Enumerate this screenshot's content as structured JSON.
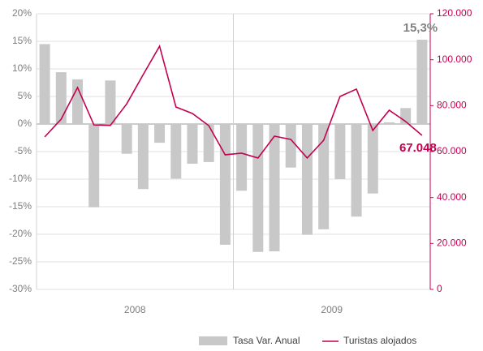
{
  "chart_data": {
    "type": "bar-line",
    "categories": [
      null,
      null,
      null,
      null,
      null,
      null,
      null,
      null,
      null,
      null,
      null,
      null,
      null,
      null,
      null,
      null,
      null,
      null,
      null,
      null,
      null,
      null,
      null,
      null
    ],
    "x_groups": [
      "2008",
      "2009"
    ],
    "series": [
      {
        "name": "Tasa Var. Anual",
        "type": "bar",
        "axis": "y",
        "color": "#c8c8c8",
        "values": [
          14.5,
          9.4,
          8.1,
          -15.1,
          7.9,
          -5.4,
          -11.8,
          -3.4,
          -9.9,
          -7.2,
          -6.9,
          -21.9,
          -12.1,
          -23.2,
          -23.1,
          -7.9,
          -20.1,
          -19.1,
          -10.0,
          -16.8,
          -12.6,
          0.3,
          2.9,
          15.3
        ],
        "value_labels": [
          null,
          null,
          null,
          null,
          null,
          null,
          null,
          null,
          null,
          null,
          null,
          null,
          null,
          null,
          null,
          null,
          null,
          null,
          null,
          null,
          null,
          null,
          null,
          "15,3%"
        ]
      },
      {
        "name": "Turistas alojados",
        "type": "line",
        "axis": "y2",
        "color": "#c4004f",
        "values": [
          66400,
          74100,
          87900,
          71600,
          71400,
          80800,
          93500,
          105900,
          79400,
          76600,
          71300,
          58600,
          59300,
          57200,
          66700,
          65300,
          57200,
          64900,
          84000,
          87200,
          69200,
          78000,
          73100,
          67048
        ],
        "value_labels": [
          null,
          null,
          null,
          null,
          null,
          null,
          null,
          null,
          null,
          null,
          null,
          null,
          null,
          null,
          null,
          null,
          null,
          null,
          null,
          null,
          null,
          null,
          null,
          "67.048"
        ]
      }
    ],
    "ylim": [
      -30,
      20
    ],
    "yticks": [
      {
        "value": 20,
        "label": "20%"
      },
      {
        "value": 15,
        "label": "15%"
      },
      {
        "value": 10,
        "label": "10%"
      },
      {
        "value": 5,
        "label": "5%"
      },
      {
        "value": 0,
        "label": "0%"
      },
      {
        "value": -5,
        "label": "-5%"
      },
      {
        "value": -10,
        "label": "-10%"
      },
      {
        "value": -15,
        "label": "-15%"
      },
      {
        "value": -20,
        "label": "-20%"
      },
      {
        "value": -25,
        "label": "-25%"
      },
      {
        "value": -30,
        "label": "-30%"
      }
    ],
    "y2lim": [
      0,
      120000
    ],
    "y2ticks": [
      {
        "value": 120000,
        "label": "120.000"
      },
      {
        "value": 100000,
        "label": "100.000"
      },
      {
        "value": 80000,
        "label": "80.000"
      },
      {
        "value": 60000,
        "label": "60.000"
      },
      {
        "value": 40000,
        "label": "40.000"
      },
      {
        "value": 20000,
        "label": "20.000"
      },
      0
    ],
    "grid": true,
    "legend": "bottom"
  }
}
